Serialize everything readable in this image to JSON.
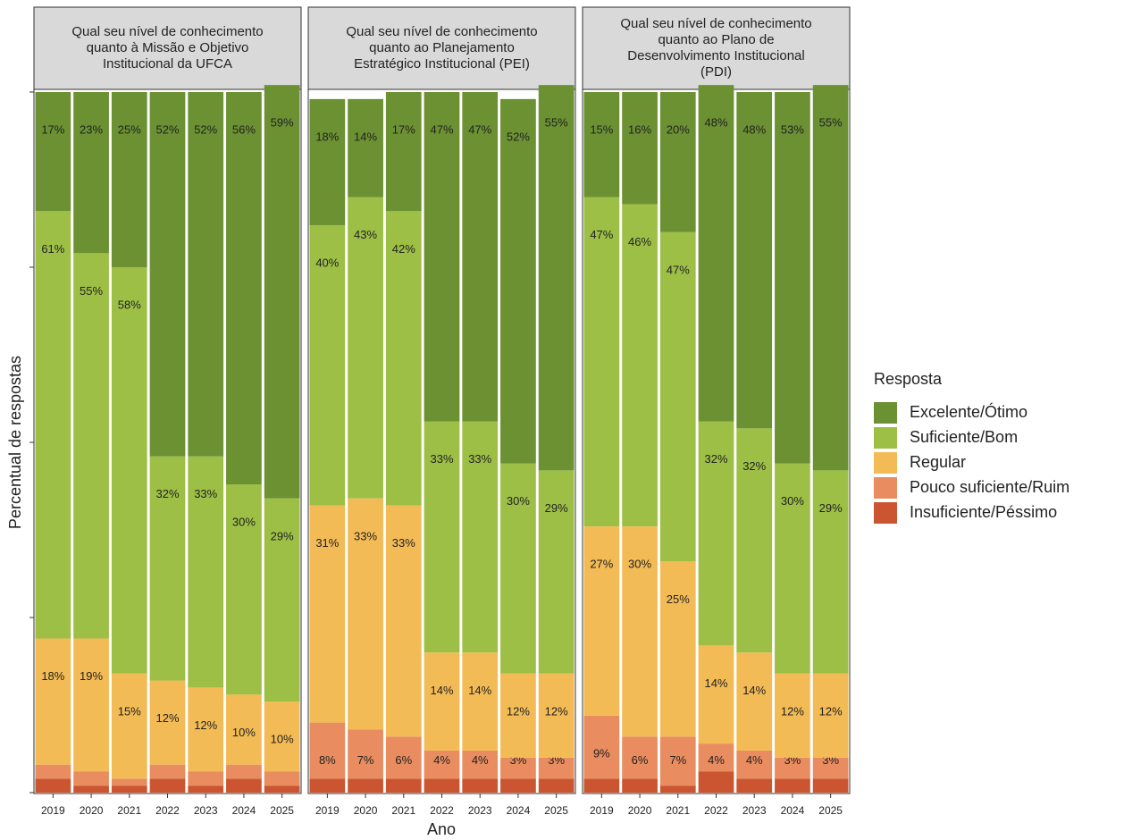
{
  "axes": {
    "xlabel": "Ano",
    "ylabel": "Percentual de respostas"
  },
  "legend": {
    "title": "Resposta"
  },
  "chart_data": [
    {
      "type": "bar",
      "stacked": true,
      "title": [
        "Qual seu nível de conhecimento",
        "quanto à Missão e Objetivo",
        "Institucional da UFCA"
      ],
      "categories": [
        "2019",
        "2020",
        "2021",
        "2022",
        "2023",
        "2024",
        "2025"
      ],
      "ylim": [
        0,
        100
      ],
      "yticks": [
        0,
        25,
        50,
        75,
        100
      ],
      "series": [
        {
          "name": "Excelente/Ótimo",
          "color": "#6b9132",
          "values": [
            17,
            23,
            25,
            52,
            52,
            56,
            59
          ],
          "value_labels": [
            "17%",
            "23%",
            "25%",
            "52%",
            "52%",
            "56%",
            "59%"
          ]
        },
        {
          "name": "Suficiente/Bom",
          "color": "#9dbf46",
          "values": [
            61,
            55,
            58,
            32,
            33,
            30,
            29
          ],
          "value_labels": [
            "61%",
            "55%",
            "58%",
            "32%",
            "33%",
            "30%",
            "29%"
          ]
        },
        {
          "name": "Regular",
          "color": "#f3bb55",
          "values": [
            18,
            19,
            15,
            12,
            12,
            10,
            10
          ],
          "value_labels": [
            "18%",
            "19%",
            "15%",
            "12%",
            "12%",
            "10%",
            "10%"
          ]
        },
        {
          "name": "Pouco suficiente/Ruim",
          "color": "#e98c60",
          "values": [
            2,
            2,
            1,
            2,
            2,
            2,
            2
          ],
          "value_labels": [
            "2%",
            "2%",
            "1%",
            "2%",
            "2%",
            "2%",
            "2%"
          ]
        },
        {
          "name": "Insuficiente/Péssimo",
          "color": "#cb5530",
          "values": [
            2,
            1,
            1,
            2,
            1,
            2,
            1
          ]
        }
      ]
    },
    {
      "type": "bar",
      "stacked": true,
      "title": [
        "Qual seu nível de conhecimento",
        "quanto ao Planejamento",
        "Estratégico Institucional (PEI)"
      ],
      "categories": [
        "2019",
        "2020",
        "2021",
        "2022",
        "2023",
        "2024",
        "2025"
      ],
      "ylim": [
        0,
        100
      ],
      "yticks": [
        0,
        25,
        50,
        75,
        100
      ],
      "series": [
        {
          "name": "Excelente/Ótimo",
          "color": "#6b9132",
          "values": [
            18,
            14,
            17,
            47,
            47,
            52,
            55
          ],
          "value_labels": [
            "18%",
            "14%",
            "17%",
            "47%",
            "47%",
            "52%",
            "55%"
          ]
        },
        {
          "name": "Suficiente/Bom",
          "color": "#9dbf46",
          "values": [
            40,
            43,
            42,
            33,
            33,
            30,
            29
          ],
          "value_labels": [
            "40%",
            "43%",
            "42%",
            "33%",
            "33%",
            "30%",
            "29%"
          ]
        },
        {
          "name": "Regular",
          "color": "#f3bb55",
          "values": [
            31,
            33,
            33,
            14,
            14,
            12,
            12
          ],
          "value_labels": [
            "31%",
            "33%",
            "33%",
            "14%",
            "14%",
            "12%",
            "12%"
          ]
        },
        {
          "name": "Pouco suficiente/Ruim",
          "color": "#e98c60",
          "values": [
            8,
            7,
            6,
            4,
            4,
            3,
            3
          ],
          "value_labels": [
            "8%",
            "7%",
            "6%",
            "4%",
            "4%",
            "3%",
            "3%"
          ]
        },
        {
          "name": "Insuficiente/Péssimo",
          "color": "#cb5530",
          "values": [
            2,
            2,
            2,
            2,
            2,
            2,
            2
          ]
        }
      ]
    },
    {
      "type": "bar",
      "stacked": true,
      "title": [
        "Qual seu nível de conhecimento",
        "quanto ao Plano de",
        "Desenvolvimento Institucional",
        "(PDI)"
      ],
      "categories": [
        "2019",
        "2020",
        "2021",
        "2022",
        "2023",
        "2024",
        "2025"
      ],
      "ylim": [
        0,
        100
      ],
      "yticks": [
        0,
        25,
        50,
        75,
        100
      ],
      "series": [
        {
          "name": "Excelente/Ótimo",
          "color": "#6b9132",
          "values": [
            15,
            16,
            20,
            48,
            48,
            53,
            55
          ],
          "value_labels": [
            "15%",
            "16%",
            "20%",
            "48%",
            "48%",
            "53%",
            "55%"
          ]
        },
        {
          "name": "Suficiente/Bom",
          "color": "#9dbf46",
          "values": [
            47,
            46,
            47,
            32,
            32,
            30,
            29
          ],
          "value_labels": [
            "47%",
            "46%",
            "47%",
            "32%",
            "32%",
            "30%",
            "29%"
          ]
        },
        {
          "name": "Regular",
          "color": "#f3bb55",
          "values": [
            27,
            30,
            25,
            14,
            14,
            12,
            12
          ],
          "value_labels": [
            "27%",
            "30%",
            "25%",
            "14%",
            "14%",
            "12%",
            "12%"
          ]
        },
        {
          "name": "Pouco suficiente/Ruim",
          "color": "#e98c60",
          "values": [
            9,
            6,
            7,
            4,
            4,
            3,
            3
          ],
          "value_labels": [
            "9%",
            "6%",
            "7%",
            "4%",
            "4%",
            "3%",
            "3%"
          ]
        },
        {
          "name": "Insuficiente/Péssimo",
          "color": "#cb5530",
          "values": [
            2,
            2,
            1,
            3,
            2,
            2,
            2
          ]
        }
      ]
    }
  ]
}
